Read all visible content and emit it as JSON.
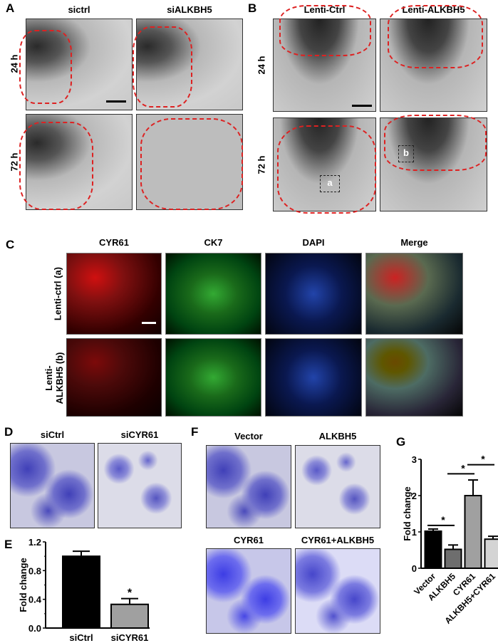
{
  "panelA": {
    "label": "A",
    "cols": [
      "sictrl",
      "siALKBH5"
    ],
    "rows": [
      "24 h",
      "72 h"
    ]
  },
  "panelB": {
    "label": "B",
    "cols": [
      "Lenti-Ctrl",
      "Lenti-ALKBH5"
    ],
    "rows": [
      "24 h",
      "72 h"
    ],
    "boxes": [
      "a",
      "b"
    ]
  },
  "panelC": {
    "label": "C",
    "cols": [
      "CYR61",
      "CK7",
      "DAPI",
      "Merge"
    ],
    "rows": [
      "Lenti-ctrl (a)",
      "Lenti-",
      "ALKBH5 (b)"
    ]
  },
  "panelD": {
    "label": "D",
    "cols": [
      "siCtrl",
      "siCYR61"
    ]
  },
  "panelF": {
    "label": "F",
    "cols": [
      "Vector",
      "ALKBH5",
      "CYR61",
      "CYR61+ALKBH5"
    ]
  },
  "chart_data": [
    {
      "panel": "E",
      "type": "bar",
      "categories": [
        "siCtrl",
        "siCYR61"
      ],
      "values": [
        1.0,
        0.33
      ],
      "errors": [
        0.07,
        0.08
      ],
      "colors": [
        "#000000",
        "#a0a0a0"
      ],
      "ylabel": "Fold change",
      "ylim": [
        0,
        1.2
      ],
      "yticks": [
        "0.0",
        "0.4",
        "0.8",
        "1.2"
      ],
      "annotations": [
        "*"
      ]
    },
    {
      "panel": "G",
      "type": "bar",
      "categories": [
        "Vector",
        "ALKBH5",
        "CYR61",
        "ALKBH5+CYR61"
      ],
      "values": [
        1.02,
        0.52,
        2.0,
        0.8
      ],
      "errors": [
        0.06,
        0.12,
        0.43,
        0.08
      ],
      "colors": [
        "#000000",
        "#6e6e6e",
        "#a0a0a0",
        "#d4d4d4"
      ],
      "ylabel": "Fold change",
      "ylim": [
        0,
        3
      ],
      "yticks": [
        "0",
        "1",
        "2",
        "3"
      ],
      "significance": [
        {
          "pair": [
            "Vector",
            "ALKBH5"
          ],
          "label": "*"
        },
        {
          "pair": [
            "ALKBH5",
            "CYR61"
          ],
          "label": "*"
        },
        {
          "pair": [
            "CYR61",
            "ALKBH5+CYR61"
          ],
          "label": "*"
        }
      ]
    }
  ]
}
